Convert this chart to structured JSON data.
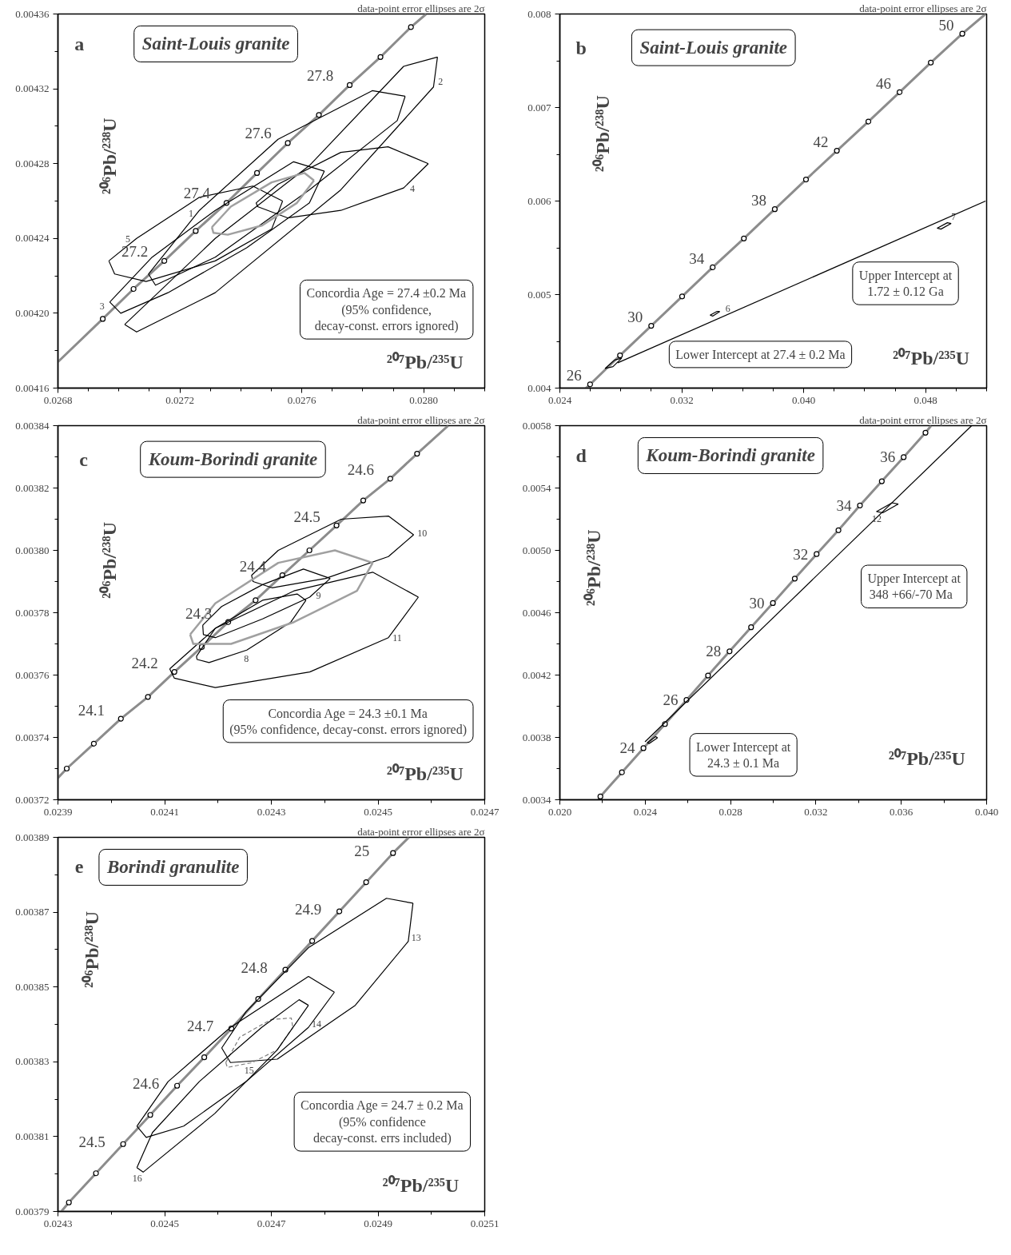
{
  "chart_data": [
    {
      "type": "line",
      "title": "Saint-Louis granite",
      "xlabel": "²⁰⁷Pb/²³⁵U",
      "ylabel": "²⁰⁶Pb/²³⁸U",
      "annotations": [
        "a",
        "data-point error ellipses are 2σ",
        "Concordia Age = 27.4 ±0.2 Ma\n(95% confidence,\ndecay-const. errors ignored)",
        {
          "text": "27.2",
          "x": 0.027149,
          "y": 0.004228
        },
        {
          "text": "27.4",
          "x": 0.027353,
          "y": 0.004259
        },
        {
          "text": "27.6",
          "x": 0.027554,
          "y": 0.004291
        },
        {
          "text": "27.8",
          "x": 0.027757,
          "y": 0.004322
        },
        {
          "text": "1",
          "x": 0.027264,
          "y": 0.004255
        },
        {
          "text": "2",
          "x": 0.028032,
          "y": 0.004321
        },
        {
          "text": "3",
          "x": 0.02697,
          "y": 0.004206
        },
        {
          "text": "4",
          "x": 0.027934,
          "y": 0.004267
        },
        {
          "text": "5",
          "x": 0.027058,
          "y": 0.00424
        }
      ],
      "xlim": [
        0.0268,
        0.0282
      ],
      "ylim": [
        0.00416,
        0.00436
      ],
      "xticks": [
        0.0268,
        {
          "value": 0.0269,
          "label": null
        },
        {
          "value": 0.027,
          "label": null
        },
        {
          "value": 0.0271,
          "label": null
        },
        0.0272,
        {
          "value": 0.0273,
          "label": null
        },
        {
          "value": 0.0274,
          "label": null
        },
        {
          "value": 0.0275,
          "label": null
        },
        0.0276,
        {
          "value": 0.0277,
          "label": null
        },
        {
          "value": 0.0278,
          "label": null
        },
        {
          "value": 0.0279,
          "label": null
        },
        {
          "value": 0.028,
          "label": "0.0280"
        },
        {
          "value": 0.0281,
          "label": null
        },
        {
          "value": 0.0282,
          "label": null
        }
      ],
      "yticks": [
        0.00416,
        {
          "value": 0.00418,
          "label": null
        },
        {
          "value": 0.0042,
          "label": "0.00420"
        },
        {
          "value": 0.00422,
          "label": null
        },
        0.00424,
        {
          "value": 0.00426,
          "label": null
        },
        0.00428,
        {
          "value": 0.0043,
          "label": null
        },
        0.00432,
        {
          "value": 0.00434,
          "label": null
        },
        0.00436
      ],
      "series": [
        {
          "type": "line",
          "color": "#8c8c8c",
          "x": [
            0.0268,
            0.026947,
            0.027048,
            0.027149,
            0.027252,
            0.027353,
            0.027453,
            0.027554,
            0.027656,
            0.027757,
            0.027858,
            0.027958,
            0.028008
          ],
          "values": [
            0.004174,
            0.004197,
            0.004213,
            0.004228,
            0.004244,
            0.004259,
            0.004275,
            0.004291,
            0.004306,
            0.004322,
            0.004337,
            0.004353,
            0.00436
          ]
        },
        {
          "type": "scatter",
          "marker": "circle",
          "color": "#000000",
          "x": [
            0.026947,
            0.027048,
            0.027149,
            0.027252,
            0.027353,
            0.027453,
            0.027554,
            0.027656,
            0.027757,
            0.027858,
            0.027958
          ],
          "values": [
            0.004197,
            0.004213,
            0.004228,
            0.004244,
            0.004259,
            0.004275,
            0.004291,
            0.004306,
            0.004322,
            0.004337,
            0.004353
          ]
        },
        {
          "type": "line",
          "color": "#000000",
          "x": [
            0.027097,
            0.027264,
            0.027522,
            0.027831,
            0.027939
          ],
          "values": [
            0.004221,
            0.004255,
            0.004293,
            0.004319,
            0.004316
          ]
        },
        {
          "type": "line",
          "color": "#000000",
          "x": [
            0.027097,
            0.02712,
            0.027316,
            0.027625,
            0.027913,
            0.027939
          ],
          "values": [
            0.004221,
            0.004215,
            0.00423,
            0.004266,
            0.004303,
            0.004316
          ]
        },
        {
          "type": "line",
          "color": "#000000",
          "x": [
            0.027019,
            0.027316,
            0.027625,
            0.027934,
            0.028045
          ],
          "values": [
            0.004194,
            0.00424,
            0.004279,
            0.004332,
            0.004337
          ]
        },
        {
          "type": "line",
          "color": "#000000",
          "x": [
            0.027019,
            0.027058,
            0.027316,
            0.027728,
            0.028032,
            0.028045
          ],
          "values": [
            0.004194,
            0.00419,
            0.004211,
            0.004266,
            0.004321,
            0.004337
          ]
        },
        {
          "type": "line",
          "color": "#000000",
          "x": [
            0.02697,
            0.027109,
            0.027316,
            0.027573,
            0.027674
          ],
          "values": [
            0.004206,
            0.00423,
            0.004255,
            0.004281,
            0.004276
          ]
        },
        {
          "type": "line",
          "color": "#000000",
          "x": [
            0.02697,
            0.027006,
            0.027161,
            0.027419,
            0.027625,
            0.027674
          ],
          "values": [
            0.004206,
            0.0042,
            0.004211,
            0.004235,
            0.004259,
            0.004276
          ]
        },
        {
          "type": "line",
          "color": "#000000",
          "x": [
            0.02745,
            0.027522,
            0.027728,
            0.027883,
            0.028015
          ],
          "values": [
            0.004259,
            0.004269,
            0.004286,
            0.004289,
            0.00428
          ]
        },
        {
          "type": "line",
          "color": "#000000",
          "x": [
            0.02745,
            0.027455,
            0.027553,
            0.027728,
            0.027934,
            0.028015
          ],
          "values": [
            0.004259,
            0.004257,
            0.004251,
            0.004255,
            0.004267,
            0.00428
          ]
        },
        {
          "type": "line",
          "color": "#000000",
          "x": [
            0.026967,
            0.027058,
            0.027264,
            0.027439,
            0.027537
          ],
          "values": [
            0.004228,
            0.00424,
            0.004262,
            0.004268,
            0.00426
          ]
        },
        {
          "type": "line",
          "color": "#000000",
          "x": [
            0.026967,
            0.026986,
            0.027089,
            0.027316,
            0.027501,
            0.027537
          ],
          "values": [
            0.004228,
            0.004221,
            0.004217,
            0.004228,
            0.004245,
            0.00426
          ]
        },
        {
          "type": "line",
          "color": "#a0a0a0",
          "x": [
            0.027305,
            0.027367,
            0.027501,
            0.027609,
            0.02764
          ],
          "values": [
            0.004246,
            0.004257,
            0.00427,
            0.004275,
            0.004271
          ]
        },
        {
          "type": "line",
          "color": "#a0a0a0",
          "x": [
            0.027305,
            0.02731,
            0.027357,
            0.02747,
            0.027584,
            0.02764
          ],
          "values": [
            0.004246,
            0.004243,
            0.004242,
            0.004247,
            0.004259,
            0.004271
          ]
        }
      ]
    },
    {
      "type": "line",
      "title": "Saint-Louis granite",
      "xlabel": "²⁰⁷Pb/²³⁵U",
      "ylabel": "²⁰⁶Pb/²³⁸U",
      "annotations": [
        "b",
        "data-point error ellipses are 2σ",
        "Upper Intercept at\n1.72 ± 0.12 Ga",
        "Lower Intercept at 27.4 ± 0.2 Ma",
        {
          "text": "26",
          "x": 0.025985,
          "y": 0.00404
        },
        {
          "text": "30",
          "x": 0.029995,
          "y": 0.004666
        },
        {
          "text": "34",
          "x": 0.034027,
          "y": 0.005291
        },
        {
          "text": "38",
          "x": 0.038101,
          "y": 0.005913
        },
        {
          "text": "42",
          "x": 0.042174,
          "y": 0.006538
        },
        {
          "text": "46",
          "x": 0.04629,
          "y": 0.007164
        },
        {
          "text": "50",
          "x": 0.050405,
          "y": 0.007789
        },
        {
          "text": "6",
          "x": 0.034487,
          "y": 0.004819
        },
        {
          "text": "7",
          "x": 0.049422,
          "y": 0.005768
        }
      ],
      "xlim": [
        0.024,
        0.052
      ],
      "ylim": [
        0.004,
        0.008
      ],
      "xticks": [
        0.024,
        {
          "value": 0.026,
          "label": null
        },
        {
          "value": 0.028,
          "label": null
        },
        {
          "value": 0.03,
          "label": null
        },
        0.032,
        {
          "value": 0.034,
          "label": null
        },
        {
          "value": 0.036,
          "label": null
        },
        {
          "value": 0.038,
          "label": null
        },
        {
          "value": 0.04,
          "label": "0.040"
        },
        {
          "value": 0.042,
          "label": null
        },
        {
          "value": 0.044,
          "label": null
        },
        {
          "value": 0.046,
          "label": null
        },
        0.048,
        {
          "value": 0.05,
          "label": null
        },
        {
          "value": 0.052,
          "label": null
        }
      ],
      "yticks": [
        0.004,
        {
          "value": 0.0045,
          "label": null
        },
        0.005,
        {
          "value": 0.0055,
          "label": null
        },
        0.006,
        {
          "value": 0.0065,
          "label": null
        },
        0.007,
        {
          "value": 0.0075,
          "label": null
        },
        0.008
      ],
      "series": [
        {
          "type": "line",
          "color": "#8c8c8c",
          "x": [
            0.02571,
            0.025985,
            0.027948,
            0.029995,
            0.032022,
            0.034027,
            0.036074,
            0.038101,
            0.040148,
            0.042174,
            0.044242,
            0.04629,
            0.048337,
            0.050405,
            0.05193
          ],
          "values": [
            0.004,
            0.00404,
            0.00435,
            0.004666,
            0.00498,
            0.005291,
            0.0056,
            0.005913,
            0.00623,
            0.006538,
            0.00685,
            0.007164,
            0.00748,
            0.007789,
            0.008
          ]
        },
        {
          "type": "scatter",
          "marker": "circle",
          "color": "#000000",
          "x": [
            0.025985,
            0.027948,
            0.029995,
            0.032022,
            0.034027,
            0.036074,
            0.038101,
            0.040148,
            0.042174,
            0.044242,
            0.04629,
            0.048337,
            0.050405
          ],
          "values": [
            0.00404,
            0.00435,
            0.004666,
            0.00498,
            0.005291,
            0.0056,
            0.005913,
            0.00623,
            0.006538,
            0.00685,
            0.007164,
            0.00748,
            0.007789
          ]
        },
        {
          "type": "line",
          "color": "#000000",
          "x": [
            0.0278,
            0.05193
          ],
          "values": [
            0.00427,
            0.006
          ]
        },
        {
          "type": "line",
          "color": "#000000",
          "x": [
            0.026966,
            0.027593,
            0.028053
          ],
          "values": [
            0.00421,
            0.0043,
            0.00432
          ]
        },
        {
          "type": "line",
          "color": "#000000",
          "x": [
            0.026966,
            0.027489,
            0.028053
          ],
          "values": [
            0.00421,
            0.00423,
            0.00432
          ]
        },
        {
          "type": "line",
          "color": "#000000",
          "x": [
            0.03386,
            0.034319,
            0.034487
          ],
          "values": [
            0.00478,
            0.00482,
            0.004819
          ]
        },
        {
          "type": "line",
          "color": "#000000",
          "x": [
            0.03386,
            0.034027,
            0.034487
          ],
          "values": [
            0.00478,
            0.00477,
            0.004819
          ]
        },
        {
          "type": "line",
          "color": "#000000",
          "x": [
            0.048755,
            0.049422,
            0.049673
          ],
          "values": [
            0.00571,
            0.005768,
            0.00576
          ]
        },
        {
          "type": "line",
          "color": "#000000",
          "x": [
            0.048755,
            0.049004,
            0.049673
          ],
          "values": [
            0.00571,
            0.0057,
            0.00576
          ]
        }
      ]
    },
    {
      "type": "line",
      "title": "Koum-Borindi granite",
      "xlabel": "²⁰⁷Pb/²³⁵U",
      "ylabel": "²⁰⁶Pb/²³⁸U",
      "annotations": [
        "c",
        "data-point error ellipses are 2σ",
        "Concordia Age = 24.3 ±0.1 Ma\n(95% confidence, decay-const. errors ignored)",
        {
          "text": "24.1",
          "x": 0.024018,
          "y": 0.003746
        },
        {
          "text": "24.2",
          "x": 0.0241183,
          "y": 0.003761
        },
        {
          "text": "24.3",
          "x": 0.0242192,
          "y": 0.003777
        },
        {
          "text": "24.4",
          "x": 0.0243207,
          "y": 0.003792
        },
        {
          "text": "24.5",
          "x": 0.0244222,
          "y": 0.003808
        },
        {
          "text": "24.6",
          "x": 0.024523,
          "y": 0.003823
        },
        {
          "text": "8",
          "x": 0.024254,
          "y": 0.003768
        },
        {
          "text": "9",
          "x": 0.024372,
          "y": 0.003785
        },
        {
          "text": "10",
          "x": 0.0245667,
          "y": 0.003805
        },
        {
          "text": "11",
          "x": 0.0245195,
          "y": 0.003772
        }
      ],
      "xlim": [
        0.0239,
        0.0247
      ],
      "ylim": [
        0.00372,
        0.00384
      ],
      "xticks": [
        0.0239,
        {
          "value": 0.024,
          "label": null
        },
        0.0241,
        {
          "value": 0.0242,
          "label": null
        },
        0.0243,
        {
          "value": 0.0244,
          "label": null
        },
        0.0245,
        {
          "value": 0.0246,
          "label": null
        },
        0.0247
      ],
      "yticks": [
        0.00372,
        {
          "value": 0.00373,
          "label": null
        },
        0.00374,
        {
          "value": 0.00375,
          "label": null
        },
        0.00376,
        {
          "value": 0.00377,
          "label": null
        },
        0.00378,
        {
          "value": 0.00379,
          "label": null
        },
        {
          "value": 0.0038,
          "label": "0.00380"
        },
        {
          "value": 0.00381,
          "label": null
        },
        0.00382,
        {
          "value": 0.00383,
          "label": null
        },
        0.00384
      ],
      "series": [
        {
          "type": "line",
          "color": "#8c8c8c",
          "x": [
            0.0239,
            0.0239165,
            0.0239673,
            0.024018,
            0.0240687,
            0.0241183,
            0.0241696,
            0.0242192,
            0.0242705,
            0.0243207,
            0.0243714,
            0.0244222,
            0.0244723,
            0.024523,
            0.0245732,
            0.0246316
          ],
          "values": [
            0.003727,
            0.00373,
            0.003738,
            0.003746,
            0.003753,
            0.003761,
            0.003769,
            0.003777,
            0.003784,
            0.003792,
            0.0038,
            0.003808,
            0.003816,
            0.003823,
            0.003831,
            0.00384
          ]
        },
        {
          "type": "scatter",
          "marker": "circle",
          "color": "#000000",
          "x": [
            0.0239165,
            0.0239673,
            0.024018,
            0.0240687,
            0.0241183,
            0.0241696,
            0.0242192,
            0.0242705,
            0.0243207,
            0.0243714,
            0.0244222,
            0.0244723,
            0.024523,
            0.0245732
          ],
          "values": [
            0.00373,
            0.003738,
            0.003746,
            0.003753,
            0.003761,
            0.003769,
            0.003777,
            0.003784,
            0.003792,
            0.0038,
            0.003808,
            0.003816,
            0.003823,
            0.003831
          ]
        },
        {
          "type": "line",
          "color": "#000000",
          "x": [
            0.0241596,
            0.024195,
            0.0242835,
            0.0243484,
            0.0243649
          ],
          "values": [
            0.003766,
            0.003775,
            0.003784,
            0.003786,
            0.003784
          ]
        },
        {
          "type": "line",
          "color": "#000000",
          "x": [
            0.0241596,
            0.0241608,
            0.0241832,
            0.024254,
            0.0243366,
            0.0243649
          ],
          "values": [
            0.003766,
            0.003765,
            0.003764,
            0.003768,
            0.003777,
            0.003784
          ]
        },
        {
          "type": "line",
          "color": "#000000",
          "x": [
            0.0241714,
            0.0242068,
            0.0242835,
            0.0243602,
            0.0244104
          ],
          "values": [
            0.003776,
            0.003782,
            0.003789,
            0.003794,
            0.003791
          ]
        },
        {
          "type": "line",
          "color": "#000000",
          "x": [
            0.0241714,
            0.0241726,
            0.024195,
            0.0242835,
            0.024372,
            0.0244104
          ],
          "values": [
            0.003776,
            0.003773,
            0.003772,
            0.003778,
            0.003785,
            0.003791
          ]
        },
        {
          "type": "line",
          "color": "#000000",
          "x": [
            0.0242629,
            0.024313,
            0.024431,
            0.0245195,
            0.0245667
          ],
          "values": [
            0.003792,
            0.0038,
            0.00381,
            0.003811,
            0.003805
          ]
        },
        {
          "type": "line",
          "color": "#000000",
          "x": [
            0.0242629,
            0.0242658,
            0.0243012,
            0.0244015,
            0.0245195,
            0.0245667
          ],
          "values": [
            0.003792,
            0.00379,
            0.003788,
            0.003791,
            0.003798,
            0.003805
          ]
        },
        {
          "type": "line",
          "color": "#000000",
          "x": [
            0.0241095,
            0.024195,
            0.0243425,
            0.02449,
            0.0245756
          ],
          "values": [
            0.003762,
            0.003775,
            0.003787,
            0.003793,
            0.003785
          ]
        },
        {
          "type": "line",
          "color": "#000000",
          "x": [
            0.0241095,
            0.0241183,
            0.024195,
            0.024372,
            0.0245195,
            0.0245756
          ],
          "values": [
            0.003762,
            0.003759,
            0.003756,
            0.003761,
            0.003772,
            0.003785
          ]
        },
        {
          "type": "line",
          "color": "#a0a0a0",
          "x": [
            0.0241478,
            0.024195,
            0.024313,
            0.0244192,
            0.02449
          ],
          "values": [
            0.003773,
            0.003783,
            0.003796,
            0.0038,
            0.003796
          ]
        },
        {
          "type": "line",
          "color": "#a0a0a0",
          "x": [
            0.0241478,
            0.0241537,
            0.0242245,
            0.0243425,
            0.0244605,
            0.02449
          ],
          "values": [
            0.003773,
            0.00377,
            0.00377,
            0.003777,
            0.003787,
            0.003796
          ]
        }
      ]
    },
    {
      "type": "line",
      "title": "Koum-Borindi granite",
      "xlabel": "²⁰⁷Pb/²³⁵U",
      "ylabel": "²⁰⁶Pb/²³⁸U",
      "annotations": [
        "d",
        "data-point error ellipses are 2σ",
        "Upper Intercept at\n348  +66/-70  Ma",
        "Lower Intercept at\n24.3 ± 0.1 Ma",
        {
          "text": "24",
          "x": 0.023918,
          "y": 0.003731
        },
        {
          "text": "26",
          "x": 0.025936,
          "y": 0.00404
        },
        {
          "text": "28",
          "x": 0.027953,
          "y": 0.004352
        },
        {
          "text": "30",
          "x": 0.029985,
          "y": 0.004662
        },
        {
          "text": "32",
          "x": 0.032032,
          "y": 0.004976
        },
        {
          "text": "34",
          "x": 0.034064,
          "y": 0.005288
        },
        {
          "text": "36",
          "x": 0.036111,
          "y": 0.005598
        },
        {
          "text": "12",
          "x": 0.035132,
          "y": 0.005241
        }
      ],
      "xlim": [
        0.02,
        0.04
      ],
      "ylim": [
        0.0034,
        0.0058
      ],
      "xticks": [
        {
          "value": 0.02,
          "label": "0.020"
        },
        {
          "value": 0.022,
          "label": null
        },
        0.024,
        {
          "value": 0.026,
          "label": null
        },
        0.028,
        {
          "value": 0.03,
          "label": null
        },
        0.032,
        {
          "value": 0.034,
          "label": null
        },
        0.036,
        {
          "value": 0.038,
          "label": null
        },
        {
          "value": 0.04,
          "label": "0.040"
        }
      ],
      "yticks": [
        0.0034,
        {
          "value": 0.0036,
          "label": null
        },
        0.0038,
        {
          "value": 0.004,
          "label": null
        },
        0.0042,
        {
          "value": 0.0044,
          "label": null
        },
        0.0046,
        {
          "value": 0.0048,
          "label": null
        },
        {
          "value": 0.005,
          "label": "0.0050"
        },
        {
          "value": 0.0052,
          "label": null
        },
        0.0054,
        {
          "value": 0.0056,
          "label": null
        },
        0.0058
      ],
      "series": [
        {
          "type": "line",
          "color": "#8c8c8c",
          "x": [
            0.021798,
            0.0219,
            0.022909,
            0.023918,
            0.024927,
            0.025936,
            0.026945,
            0.027953,
            0.028962,
            0.029985,
            0.031009,
            0.032032,
            0.033056,
            0.034064,
            0.035088,
            0.036111,
            0.037135,
            0.037398
          ],
          "values": [
            0.0034,
            0.003421,
            0.003576,
            0.003731,
            0.003886,
            0.00404,
            0.004197,
            0.004352,
            0.004507,
            0.004662,
            0.004819,
            0.004976,
            0.005129,
            0.005288,
            0.005443,
            0.005598,
            0.005755,
            0.0058
          ]
        },
        {
          "type": "scatter",
          "marker": "circle",
          "color": "#000000",
          "x": [
            0.0219,
            0.022909,
            0.023918,
            0.024927,
            0.025936,
            0.026945,
            0.027953,
            0.028962,
            0.029985,
            0.031009,
            0.032032,
            0.033056,
            0.034064,
            0.035088,
            0.036111,
            0.037135
          ],
          "values": [
            0.003421,
            0.003576,
            0.003731,
            0.003886,
            0.00404,
            0.004197,
            0.004352,
            0.004507,
            0.004662,
            0.004819,
            0.004976,
            0.005129,
            0.005288,
            0.005443,
            0.005598,
            0.005755
          ]
        },
        {
          "type": "line",
          "color": "#000000",
          "x": [
            0.023991,
            0.039298
          ],
          "values": [
            0.003772,
            0.0058
          ]
        },
        {
          "type": "line",
          "color": "#000000",
          "x": [
            0.034839,
            0.03557,
            0.035863
          ],
          "values": [
            0.005249,
            0.005305,
            0.005297
          ]
        },
        {
          "type": "line",
          "color": "#000000",
          "x": [
            0.034839,
            0.035132,
            0.035863
          ],
          "values": [
            0.005249,
            0.005241,
            0.005297
          ]
        },
        {
          "type": "line",
          "color": "#000000",
          "x": [
            0.024094,
            0.024488,
            0.024576
          ],
          "values": [
            0.003765,
            0.003805,
            0.003798
          ]
        },
        {
          "type": "line",
          "color": "#000000",
          "x": [
            0.024094,
            0.024196,
            0.024576
          ],
          "values": [
            0.003765,
            0.003761,
            0.003798
          ]
        }
      ]
    },
    {
      "type": "line",
      "title": "Borindi granulite",
      "xlabel": "²⁰⁷Pb/²³⁵U",
      "ylabel": "²⁰⁶Pb/²³⁸U",
      "annotations": [
        "e",
        "data-point error ellipses are 2σ",
        "Concordia Age = 24.7 ± 0.2 Ma\n(95% confidence\ndecay-const. errs included)",
        {
          "text": "24.5",
          "x": 0.0244222,
          "y": 0.003808
        },
        {
          "text": "24.6",
          "x": 0.0245234,
          "y": 0.0038236
        },
        {
          "text": "24.7",
          "x": 0.0246251,
          "y": 0.0038389
        },
        {
          "text": "24.8",
          "x": 0.0247263,
          "y": 0.0038546
        },
        {
          "text": "24.9",
          "x": 0.0248275,
          "y": 0.0038702
        },
        {
          "text": "25",
          "x": 0.0249281,
          "y": 0.0038858
        },
        {
          "text": "13",
          "x": 0.0249567,
          "y": 0.0038622
        },
        {
          "text": "14",
          "x": 0.0247696,
          "y": 0.0038392
        },
        {
          "text": "15",
          "x": 0.0246643,
          "y": 0.0038298
        },
        {
          "text": "16",
          "x": 0.0244597,
          "y": 0.0038005
        }
      ],
      "xlim": [
        0.0243,
        0.0251
      ],
      "ylim": [
        0.00379,
        0.00389
      ],
      "xticks": [
        0.0243,
        {
          "value": 0.0244,
          "label": null
        },
        0.0245,
        {
          "value": 0.0246,
          "label": null
        },
        0.0247,
        {
          "value": 0.0248,
          "label": null
        },
        0.0249,
        {
          "value": 0.025,
          "label": null
        },
        0.0251
      ],
      "yticks": [
        0.00379,
        {
          "value": 0.0038,
          "label": null
        },
        0.00381,
        {
          "value": 0.00382,
          "label": null
        },
        0.00383,
        {
          "value": 0.00384,
          "label": null
        },
        0.00385,
        {
          "value": 0.00386,
          "label": null
        },
        0.00387,
        {
          "value": 0.00388,
          "label": null
        },
        0.00389
      ],
      "series": [
        {
          "type": "line",
          "color": "#8c8c8c",
          "x": [
            0.0243064,
            0.0243205,
            0.0243713,
            0.0244222,
            0.0244731,
            0.0245234,
            0.0245743,
            0.0246251,
            0.0246754,
            0.0247263,
            0.0247766,
            0.0248275,
            0.0248778,
            0.0249281,
            0.0249579
          ],
          "values": [
            0.00379,
            0.0037924,
            0.0038002,
            0.003808,
            0.0038158,
            0.0038236,
            0.0038312,
            0.0038389,
            0.0038468,
            0.0038546,
            0.0038623,
            0.0038702,
            0.003878,
            0.0038858,
            0.00389
          ]
        },
        {
          "type": "scatter",
          "marker": "circle",
          "color": "#000000",
          "x": [
            0.0243205,
            0.0243713,
            0.0244222,
            0.0244731,
            0.0245234,
            0.0245743,
            0.0246251,
            0.0246754,
            0.0247263,
            0.0247766,
            0.0248275,
            0.0248778,
            0.0249281
          ],
          "values": [
            0.0037924,
            0.0038002,
            0.003808,
            0.0038158,
            0.0038236,
            0.0038312,
            0.0038389,
            0.0038468,
            0.0038546,
            0.0038623,
            0.0038702,
            0.003878,
            0.0038858
          ]
        },
        {
          "type": "line",
          "color": "#000000",
          "x": [
            0.024607,
            0.0246526,
            0.0247696,
            0.0249158,
            0.0249655
          ],
          "values": [
            0.0038337,
            0.0038434,
            0.0038605,
            0.0038737,
            0.0038724
          ]
        },
        {
          "type": "line",
          "color": "#000000",
          "x": [
            0.024607,
            0.0246234,
            0.0247111,
            0.0248573,
            0.0249567,
            0.0249655
          ],
          "values": [
            0.0038337,
            0.0038298,
            0.0038307,
            0.0038451,
            0.0038622,
            0.0038724
          ]
        },
        {
          "type": "line",
          "color": "#000000",
          "x": [
            0.024448,
            0.0245064,
            0.0246234,
            0.0247696,
            0.0248182
          ],
          "values": [
            0.0038128,
            0.0038247,
            0.0038392,
            0.0038528,
            0.0038486
          ]
        },
        {
          "type": "line",
          "color": "#000000",
          "x": [
            0.024448,
            0.0244655,
            0.0245357,
            0.0246526,
            0.0247696,
            0.0248182
          ],
          "values": [
            0.0038128,
            0.0038098,
            0.0038128,
            0.0038247,
            0.0038392,
            0.0038486
          ]
        },
        {
          "type": "line",
          "color": "#808080",
          "line_style": "dashed",
          "x": [
            0.0246146,
            0.0246409,
            0.0246994,
            0.0247374,
            0.0247403
          ],
          "values": [
            0.0038298,
            0.0038366,
            0.0038413,
            0.0038417,
            0.0038392
          ]
        },
        {
          "type": "line",
          "color": "#808080",
          "line_style": "dashed",
          "x": [
            0.0246146,
            0.0246175,
            0.0246643,
            0.0247111,
            0.0247403
          ],
          "values": [
            0.0038298,
            0.0038285,
            0.0038298,
            0.0038332,
            0.0038392
          ]
        },
        {
          "type": "line",
          "color": "#000000",
          "x": [
            0.024448,
            0.0244772,
            0.0245649,
            0.0246819,
            0.0247521,
            0.0247696
          ],
          "values": [
            0.0038017,
            0.0038111,
            0.0038247,
            0.0038392,
            0.0038466,
            0.0038451
          ]
        },
        {
          "type": "line",
          "color": "#000000",
          "x": [
            0.024448,
            0.0244597,
            0.0245942,
            0.0247111,
            0.0247696
          ],
          "values": [
            0.0038017,
            0.0038005,
            0.0038162,
            0.0038332,
            0.0038451
          ]
        }
      ]
    }
  ]
}
